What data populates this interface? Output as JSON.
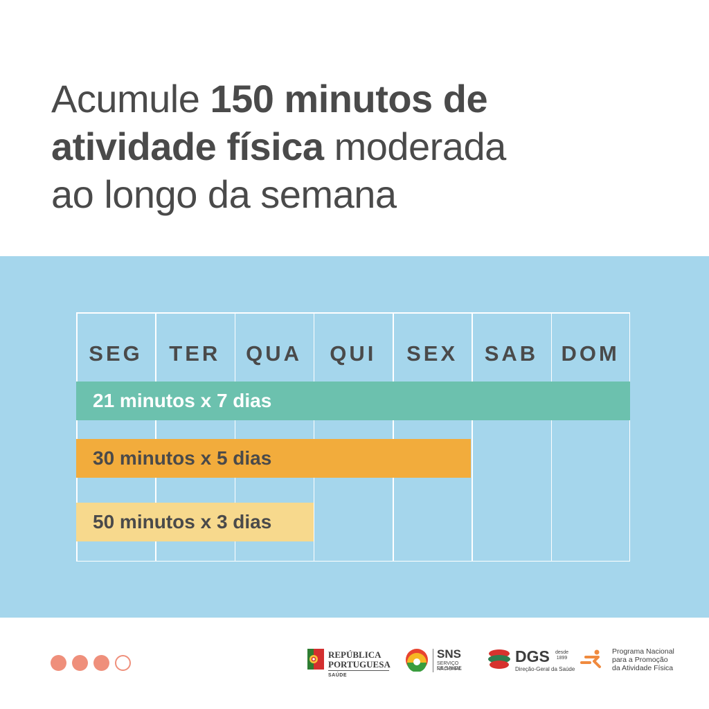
{
  "headline": {
    "line1_light": "Acumule ",
    "line1_bold": "150 minutos de",
    "line2_bold": "atividade física",
    "line2_light": " moderada",
    "line3_light": "ao longo da semana"
  },
  "schedule": {
    "days": [
      "SEG",
      "TER",
      "QUA",
      "QUI",
      "SEX",
      "SAB",
      "DOM"
    ],
    "options": [
      {
        "label": "21 minutos x 7 dias",
        "minutes": 21,
        "days": 7,
        "color": "#6cc1ae"
      },
      {
        "label": "30 minutos x 5 dias",
        "minutes": 30,
        "days": 5,
        "color": "#f2ac3c"
      },
      {
        "label": "50 minutos x 3 dias",
        "minutes": 50,
        "days": 3,
        "color": "#f7d98d"
      }
    ]
  },
  "colors": {
    "panel": "#a5d6ec",
    "text": "#4a4a4a",
    "dots": "#ef8f7b"
  },
  "pagination": {
    "total": 4,
    "filled": 3
  },
  "logos": {
    "republica": {
      "line1": "REPÚBLICA",
      "line2": "PORTUGUESA",
      "line3": "SAÚDE"
    },
    "sns": {
      "title": "SNS",
      "line1": "SERVIÇO NACIONAL",
      "line2": "DE SAÚDE"
    },
    "dgs": {
      "title": "DGS",
      "since_word": "desde",
      "since_year": "1899",
      "subtitle": "Direção-Geral da Saúde"
    },
    "programa": {
      "line1": "Programa Nacional",
      "line2": "para a Promoção",
      "line3": "da Atividade Física"
    }
  }
}
